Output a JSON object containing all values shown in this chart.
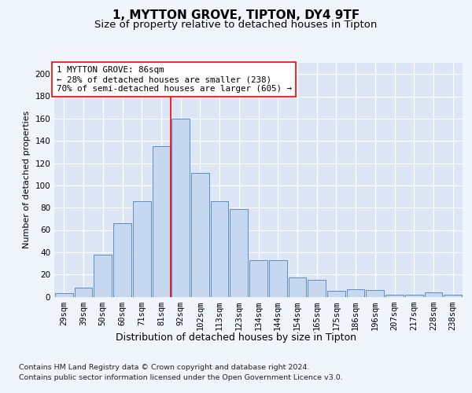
{
  "title1": "1, MYTTON GROVE, TIPTON, DY4 9TF",
  "title2": "Size of property relative to detached houses in Tipton",
  "xlabel": "Distribution of detached houses by size in Tipton",
  "ylabel": "Number of detached properties",
  "footnote1": "Contains HM Land Registry data © Crown copyright and database right 2024.",
  "footnote2": "Contains public sector information licensed under the Open Government Licence v3.0.",
  "bar_labels": [
    "29sqm",
    "39sqm",
    "50sqm",
    "60sqm",
    "71sqm",
    "81sqm",
    "92sqm",
    "102sqm",
    "113sqm",
    "123sqm",
    "134sqm",
    "144sqm",
    "154sqm",
    "165sqm",
    "175sqm",
    "186sqm",
    "196sqm",
    "207sqm",
    "217sqm",
    "228sqm",
    "238sqm"
  ],
  "bar_values": [
    3,
    8,
    38,
    66,
    86,
    135,
    160,
    111,
    86,
    79,
    33,
    33,
    17,
    15,
    5,
    7,
    6,
    2,
    2,
    4,
    2
  ],
  "bar_color": "#c5d8f0",
  "bar_edge_color": "#5a8fc5",
  "vline_pos": 5.5,
  "vline_color": "red",
  "annotation_title": "1 MYTTON GROVE: 86sqm",
  "annotation_line1": "← 28% of detached houses are smaller (238)",
  "annotation_line2": "70% of semi-detached houses are larger (605) →",
  "annotation_box_color": "white",
  "annotation_box_edge": "red",
  "ylim": [
    0,
    210
  ],
  "yticks": [
    0,
    20,
    40,
    60,
    80,
    100,
    120,
    140,
    160,
    180,
    200
  ],
  "axes_bg_color": "#dce6f5",
  "fig_bg_color": "#f0f4fb",
  "grid_color": "white",
  "title1_fontsize": 11,
  "title2_fontsize": 9.5,
  "xlabel_fontsize": 9,
  "ylabel_fontsize": 8,
  "tick_fontsize": 7.5,
  "annotation_fontsize": 7.8,
  "footnote_fontsize": 6.8
}
